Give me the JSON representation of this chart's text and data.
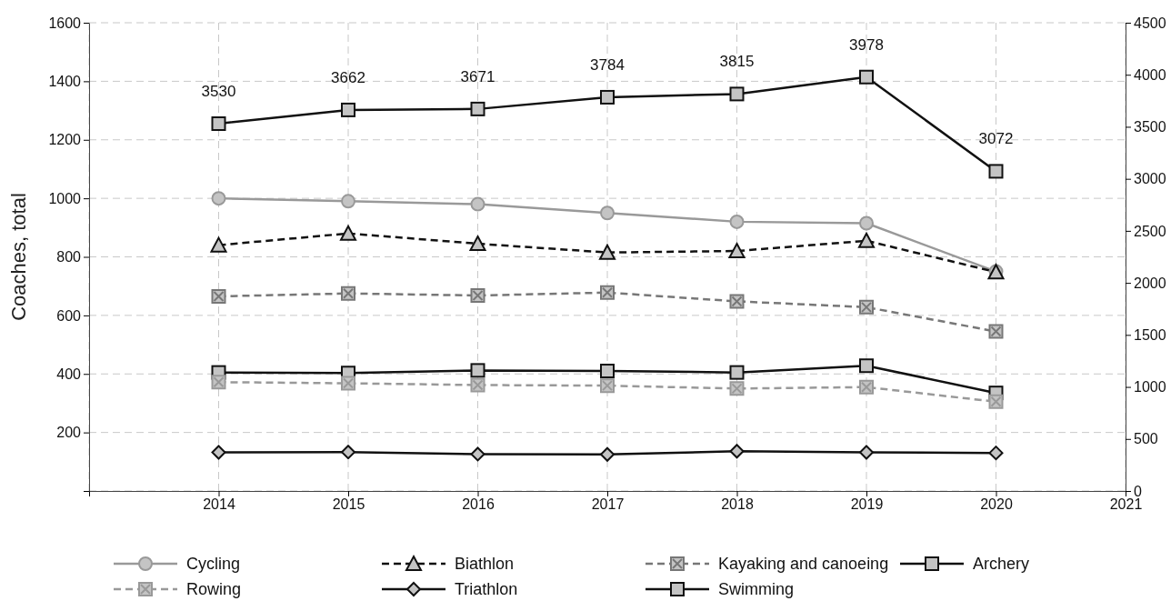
{
  "chart_data": {
    "type": "line",
    "ylabel": "Coaches, total",
    "x": [
      2014,
      2015,
      2016,
      2017,
      2018,
      2019,
      2020
    ],
    "xlim": [
      2013,
      2021
    ],
    "xticks": [
      {
        "value": 2013,
        "label": null
      },
      2014,
      2015,
      2016,
      2017,
      2018,
      2019,
      2020,
      2021
    ],
    "ylim": [
      0,
      1600
    ],
    "yticks": [
      {
        "value": 0,
        "label": null
      },
      200,
      400,
      600,
      800,
      1000,
      1200,
      1400,
      1600
    ],
    "y2lim": [
      0,
      4500
    ],
    "y2ticks": [
      0,
      500,
      1000,
      1500,
      2000,
      2500,
      3000,
      3500,
      4000,
      4500
    ],
    "grid": true,
    "legend": "bottom",
    "series": [
      {
        "name": "Cycling",
        "color": "#999999",
        "marker": "circle",
        "line_style": "solid",
        "values": [
          1000,
          990,
          980,
          950,
          920,
          915,
          750
        ]
      },
      {
        "name": "Biathlon",
        "color": "#111111",
        "marker": "triangle",
        "line_style": "dashed",
        "values": [
          840,
          880,
          845,
          815,
          820,
          855,
          748
        ]
      },
      {
        "name": "Kayaking and canoeing",
        "color": "#777777",
        "marker": "cross",
        "line_style": "dashed",
        "values": [
          665,
          675,
          668,
          678,
          648,
          628,
          545
        ]
      },
      {
        "name": "Archery",
        "color": "#111111",
        "marker": "square",
        "line_style": "solid",
        "values": [
          405,
          403,
          412,
          410,
          405,
          428,
          335
        ]
      },
      {
        "name": "Rowing",
        "color": "#999999",
        "marker": "cross",
        "line_style": "dashed",
        "values": [
          372,
          368,
          362,
          360,
          350,
          355,
          305
        ]
      },
      {
        "name": "Triathlon",
        "color": "#111111",
        "marker": "diamond",
        "line_style": "solid",
        "values": [
          132,
          133,
          126,
          125,
          136,
          132,
          130
        ]
      },
      {
        "name": "Swimming",
        "color": "#111111",
        "marker": "square",
        "line_style": "solid",
        "axis": "y2",
        "values": [
          3530,
          3662,
          3671,
          3784,
          3815,
          3978,
          3072
        ],
        "value_labels": [
          "3530",
          "3662",
          "3671",
          "3784",
          "3815",
          "3978",
          "3072"
        ]
      }
    ]
  }
}
